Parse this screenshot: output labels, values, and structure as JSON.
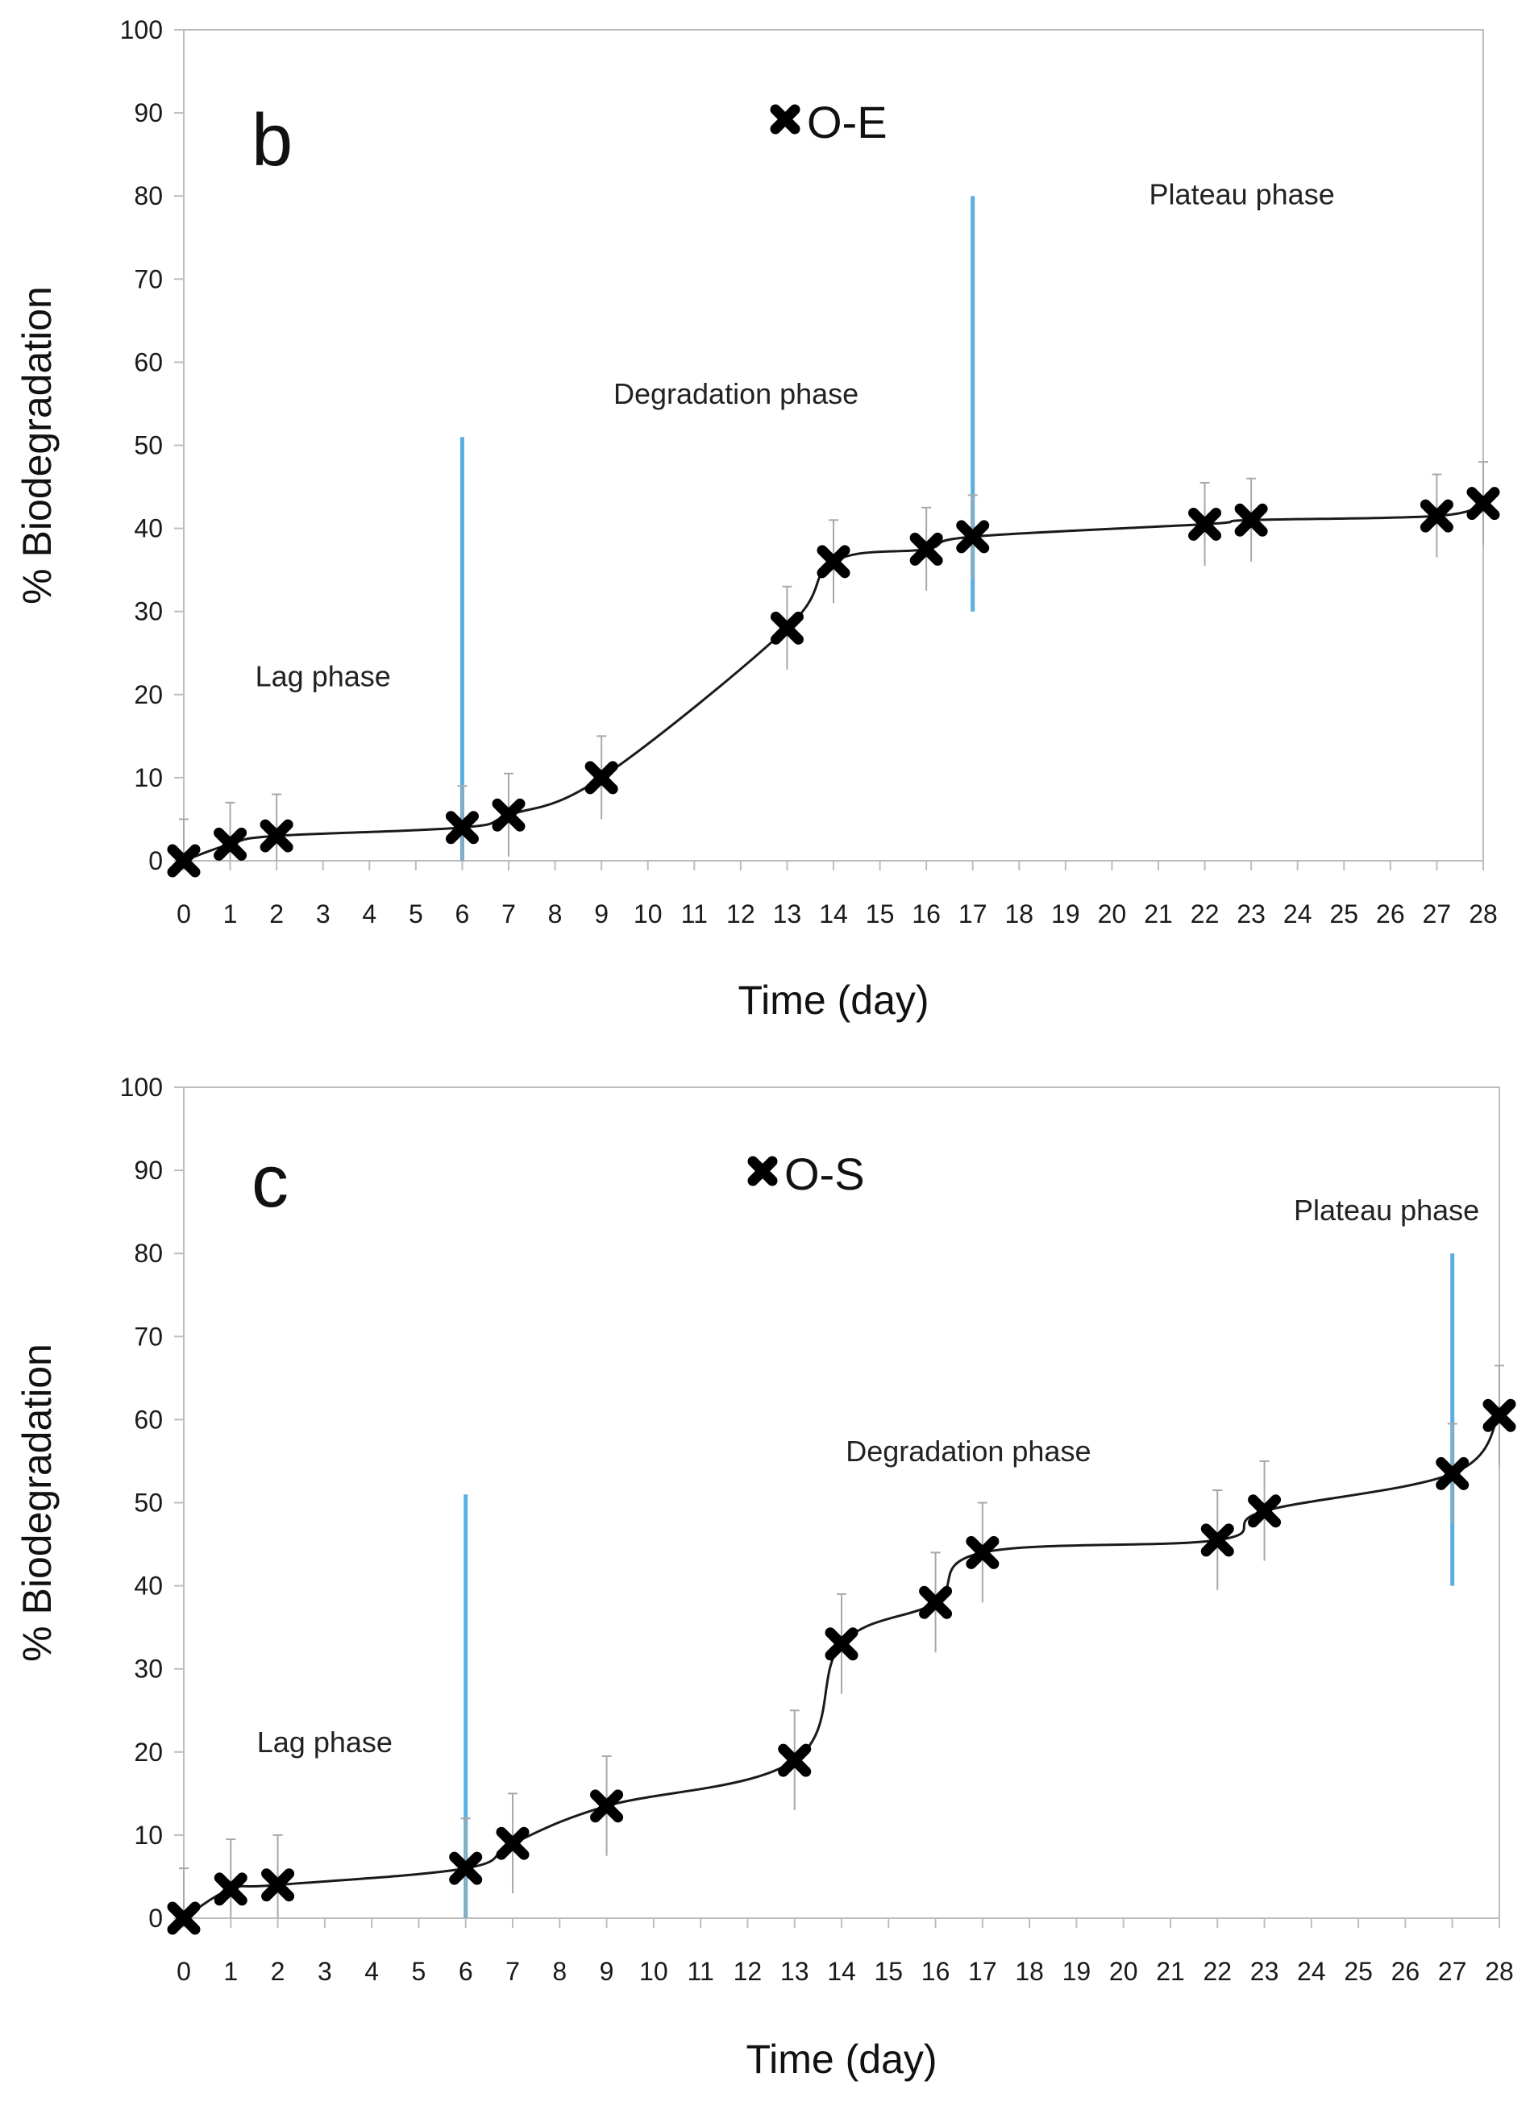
{
  "chart_data": [
    {
      "type": "line",
      "panel_label": "b",
      "legend": "O-E",
      "xlabel": "Time (day)",
      "ylabel": "% Biodegradation",
      "ylim": [
        0,
        100
      ],
      "xlim": [
        0,
        28
      ],
      "x_ticks": [
        "0",
        "1",
        "2",
        "3",
        "4",
        "5",
        "6",
        "7",
        "8",
        "9",
        "10",
        "11",
        "12",
        "13",
        "14",
        "15",
        "16",
        "17",
        "18",
        "19",
        "20",
        "21",
        "22",
        "23",
        "24",
        "25",
        "26",
        "27",
        "28"
      ],
      "y_ticks": [
        "0",
        "10",
        "20",
        "30",
        "40",
        "50",
        "60",
        "70",
        "80",
        "90",
        "100"
      ],
      "series": [
        {
          "name": "O-E",
          "x": [
            0,
            1,
            2,
            6,
            7,
            9,
            13,
            14,
            16,
            17,
            22,
            23,
            27,
            28
          ],
          "y": [
            0,
            2,
            3,
            4,
            5.5,
            10,
            28,
            36,
            37.5,
            39,
            40.5,
            41,
            41.5,
            43
          ],
          "error": [
            5,
            5,
            5,
            5,
            5,
            5,
            5,
            5,
            5,
            5,
            5,
            5,
            5,
            5
          ]
        }
      ],
      "phase_lines": [
        {
          "x": 6,
          "y_range": [
            0,
            51
          ]
        },
        {
          "x": 17,
          "y_range": [
            30,
            80
          ]
        }
      ],
      "annotations": [
        {
          "text": "Lag phase",
          "x": 3.0,
          "y": 21
        },
        {
          "text": "Degradation phase",
          "x": 11.9,
          "y": 55
        },
        {
          "text": "Plateau phase",
          "x": 22.8,
          "y": 79
        }
      ]
    },
    {
      "type": "line",
      "panel_label": "c",
      "legend": "O-S",
      "xlabel": "Time (day)",
      "ylabel": "% Biodegradation",
      "ylim": [
        0,
        100
      ],
      "xlim": [
        0,
        28
      ],
      "x_ticks": [
        "0",
        "1",
        "2",
        "3",
        "4",
        "5",
        "6",
        "7",
        "8",
        "9",
        "10",
        "11",
        "12",
        "13",
        "14",
        "15",
        "16",
        "17",
        "18",
        "19",
        "20",
        "21",
        "22",
        "23",
        "24",
        "25",
        "26",
        "27",
        "28"
      ],
      "y_ticks": [
        "0",
        "10",
        "20",
        "30",
        "40",
        "50",
        "60",
        "70",
        "80",
        "90",
        "100"
      ],
      "series": [
        {
          "name": "O-S",
          "x": [
            0,
            1,
            2,
            6,
            7,
            9,
            13,
            14,
            16,
            17,
            22,
            23,
            27,
            28
          ],
          "y": [
            0,
            3.5,
            4,
            6,
            9,
            13.5,
            19,
            33,
            38,
            44,
            45.5,
            49,
            53.5,
            60.5
          ],
          "error": [
            6,
            6,
            6,
            6,
            6,
            6,
            6,
            6,
            6,
            6,
            6,
            6,
            6,
            6
          ]
        }
      ],
      "phase_lines": [
        {
          "x": 6,
          "y_range": [
            0,
            51
          ]
        },
        {
          "x": 27,
          "y_range": [
            40,
            80
          ]
        }
      ],
      "annotations": [
        {
          "text": "Lag phase",
          "x": 3.0,
          "y": 20
        },
        {
          "text": "Degradation phase",
          "x": 16.7,
          "y": 55
        },
        {
          "text": "Plateau phase",
          "x": 25.6,
          "y": 84
        }
      ]
    }
  ]
}
